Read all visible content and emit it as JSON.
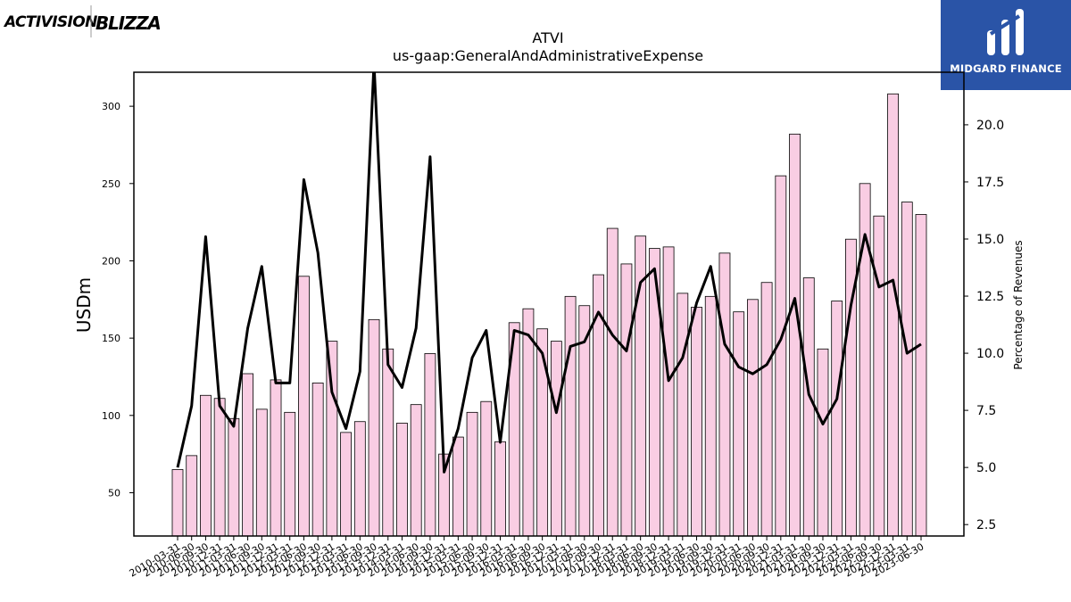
{
  "branding": {
    "left_logo_text_1": "ACTIVISION",
    "left_logo_text_2": "BLIZZARD",
    "right_logo_text": "MIDGARD FINANCE"
  },
  "colors": {
    "bar_fill": "#f9cde3",
    "bar_stroke": "#000000",
    "line": "#000000",
    "logo_bg": "#2a54a7"
  },
  "chart_data": {
    "type": "bar",
    "title": "ATVI",
    "subtitle": "us-gaap:GeneralAndAdministrativeExpense",
    "ylabel": "USDm",
    "y2label": "Percentage of Revenues",
    "ylim": [
      22,
      322
    ],
    "y2lim": [
      2.0,
      22.3
    ],
    "yticks": [
      50,
      100,
      150,
      200,
      250,
      300
    ],
    "y2ticks": [
      2.5,
      5.0,
      7.5,
      10.0,
      12.5,
      15.0,
      17.5,
      20.0
    ],
    "grid": false,
    "categories": [
      "2010-03-31",
      "2010-06-30",
      "2010-09-30",
      "2010-12-31",
      "2011-03-31",
      "2011-06-30",
      "2011-09-30",
      "2011-12-31",
      "2012-03-31",
      "2012-06-30",
      "2012-09-30",
      "2012-12-31",
      "2013-03-31",
      "2013-06-30",
      "2013-09-30",
      "2013-12-31",
      "2014-03-31",
      "2014-06-30",
      "2014-09-30",
      "2014-12-31",
      "2015-03-31",
      "2015-06-30",
      "2015-09-30",
      "2015-12-31",
      "2016-03-31",
      "2016-06-30",
      "2016-09-30",
      "2016-12-31",
      "2017-03-31",
      "2017-06-30",
      "2017-09-30",
      "2017-12-31",
      "2018-03-31",
      "2018-06-30",
      "2018-09-30",
      "2018-12-31",
      "2019-03-31",
      "2019-06-30",
      "2019-09-30",
      "2019-12-31",
      "2020-03-31",
      "2020-06-30",
      "2020-09-30",
      "2020-12-31",
      "2021-03-31",
      "2021-06-30",
      "2021-09-30",
      "2021-12-31",
      "2022-03-31",
      "2022-06-30",
      "2022-09-30",
      "2022-12-31",
      "2023-03-31",
      "2023-06-30"
    ],
    "series": [
      {
        "type": "bar",
        "axis": "left",
        "values": [
          65,
          74,
          113,
          111,
          98,
          127,
          104,
          123,
          102,
          190,
          121,
          148,
          89,
          96,
          162,
          143,
          95,
          107,
          140,
          75,
          86,
          102,
          109,
          83,
          160,
          169,
          156,
          148,
          177,
          171,
          191,
          221,
          198,
          216,
          208,
          209,
          179,
          170,
          177,
          205,
          167,
          175,
          186,
          255,
          282,
          189,
          143,
          174,
          214,
          250,
          229,
          308,
          238,
          230
        ]
      },
      {
        "type": "line",
        "axis": "right",
        "values": [
          5.0,
          7.7,
          15.1,
          7.7,
          6.8,
          11.1,
          13.8,
          8.7,
          8.7,
          17.6,
          14.4,
          8.3,
          6.7,
          9.2,
          22.7,
          9.5,
          8.5,
          11.1,
          18.6,
          4.8,
          6.7,
          9.8,
          11.0,
          6.1,
          11.0,
          10.8,
          10.0,
          7.4,
          10.3,
          10.5,
          11.8,
          10.8,
          10.1,
          13.1,
          13.7,
          8.8,
          9.8,
          12.2,
          13.8,
          10.4,
          9.4,
          9.1,
          9.5,
          10.6,
          12.4,
          8.2,
          6.9,
          8.0,
          12.1,
          15.2,
          12.9,
          13.2,
          10.0,
          10.4
        ]
      }
    ]
  }
}
